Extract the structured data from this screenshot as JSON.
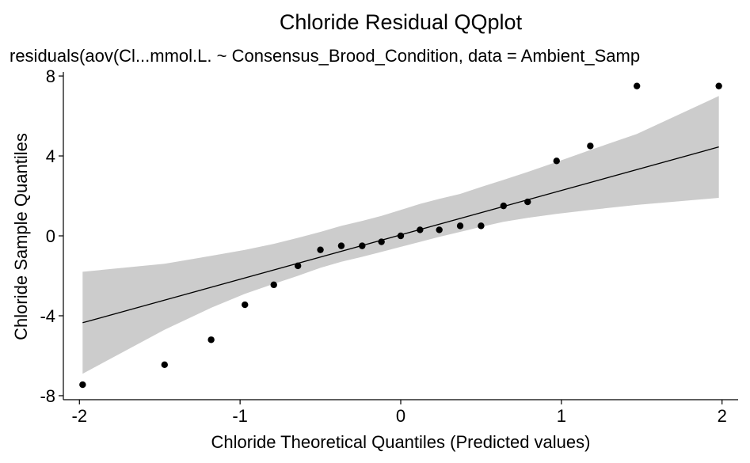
{
  "chart_data": {
    "type": "scatter",
    "title": "Chloride Residual QQplot",
    "subtitle": "residuals(aov(Cl...mmol.L. ~ Consensus_Brood_Condition, data = Ambient_Samp",
    "xlabel": "Chloride Theoretical Quantiles (Predicted values)",
    "ylabel": "Chloride Sample Quantiles",
    "xlim": [
      -2.1,
      2.1
    ],
    "ylim": [
      -8.2,
      8.2
    ],
    "x_ticks": [
      -2,
      -1,
      0,
      1,
      2
    ],
    "x_tick_labels": [
      "-2",
      "-1",
      "0",
      "1",
      "2"
    ],
    "y_ticks": [
      -8,
      -4,
      0,
      4,
      8
    ],
    "y_tick_labels": [
      "-8",
      "-4",
      "0",
      "4",
      "8"
    ],
    "grid": false,
    "points": [
      {
        "x": -1.98,
        "y": -7.45
      },
      {
        "x": -1.47,
        "y": -6.45
      },
      {
        "x": -1.18,
        "y": -5.2
      },
      {
        "x": -0.97,
        "y": -3.45
      },
      {
        "x": -0.79,
        "y": -2.45
      },
      {
        "x": -0.64,
        "y": -1.5
      },
      {
        "x": -0.5,
        "y": -0.7
      },
      {
        "x": -0.37,
        "y": -0.5
      },
      {
        "x": -0.24,
        "y": -0.5
      },
      {
        "x": -0.12,
        "y": -0.3
      },
      {
        "x": 0.0,
        "y": 0.0
      },
      {
        "x": 0.12,
        "y": 0.3
      },
      {
        "x": 0.24,
        "y": 0.3
      },
      {
        "x": 0.37,
        "y": 0.5
      },
      {
        "x": 0.5,
        "y": 0.5
      },
      {
        "x": 0.64,
        "y": 1.5
      },
      {
        "x": 0.79,
        "y": 1.7
      },
      {
        "x": 0.97,
        "y": 3.75
      },
      {
        "x": 1.18,
        "y": 4.5
      },
      {
        "x": 1.47,
        "y": 7.5
      },
      {
        "x": 1.98,
        "y": 7.5
      }
    ],
    "reference_line": {
      "x": [
        -1.98,
        1.98
      ],
      "y": [
        -4.35,
        4.45
      ]
    },
    "confidence_band": {
      "x": [
        -1.98,
        -1.47,
        -1.18,
        -0.97,
        -0.79,
        -0.64,
        -0.5,
        -0.37,
        -0.24,
        -0.12,
        0.0,
        0.12,
        0.24,
        0.37,
        0.5,
        0.64,
        0.79,
        0.97,
        1.18,
        1.47,
        1.98
      ],
      "upper": [
        -1.8,
        -1.4,
        -1.0,
        -0.7,
        -0.4,
        -0.1,
        0.2,
        0.5,
        0.75,
        1.0,
        1.3,
        1.6,
        1.85,
        2.1,
        2.45,
        2.8,
        3.2,
        3.7,
        4.3,
        5.1,
        7.0
      ],
      "lower": [
        -6.9,
        -4.7,
        -3.6,
        -2.9,
        -2.4,
        -2.0,
        -1.6,
        -1.3,
        -1.05,
        -0.8,
        -0.55,
        -0.3,
        -0.05,
        0.2,
        0.45,
        0.7,
        0.9,
        1.1,
        1.3,
        1.55,
        1.9
      ]
    },
    "colors": {
      "points": "#000000",
      "band": "#cccccc",
      "line": "#000000",
      "axis": "#000000"
    }
  }
}
